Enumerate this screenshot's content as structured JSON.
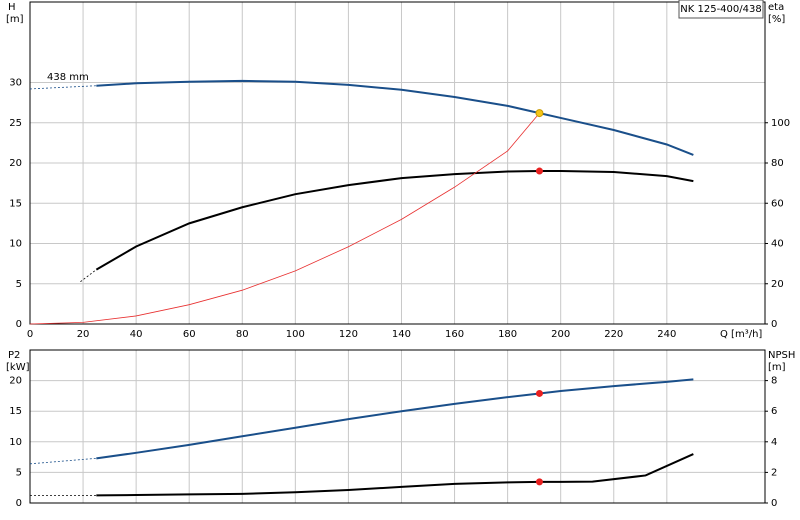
{
  "chart_data": [
    {
      "type": "line",
      "title": "NK 125-400/438",
      "y_label": "H",
      "y_unit": "[m]",
      "y2_label": "eta",
      "y2_unit": "[%]",
      "x_label": "Q [m³/h]",
      "annotation": "438 mm",
      "xlim": [
        0,
        277
      ],
      "xticks": [
        0,
        20,
        40,
        60,
        80,
        100,
        120,
        140,
        160,
        180,
        200,
        220,
        240
      ],
      "ylim": [
        0,
        40
      ],
      "yticks": [
        0,
        5,
        10,
        15,
        20,
        25,
        30
      ],
      "y2lim": [
        0,
        160
      ],
      "y2ticks": [
        0,
        20,
        40,
        60,
        80,
        100
      ],
      "grid": true,
      "series": [
        {
          "color": "#1a4f8a",
          "style": "dashed",
          "x": [
            0,
            25
          ],
          "values": [
            29.2,
            29.6
          ]
        },
        {
          "color": "#1a4f8a",
          "x": [
            25,
            40,
            60,
            80,
            100,
            120,
            140,
            160,
            180,
            192,
            200,
            220,
            240,
            250
          ],
          "values": [
            29.6,
            29.9,
            30.1,
            30.2,
            30.1,
            29.7,
            29.1,
            28.2,
            27.1,
            26.2,
            25.6,
            24.1,
            22.3,
            21.0
          ]
        },
        {
          "color": "#000000",
          "style": "dashed",
          "axis": "y2",
          "x": [
            19,
            25
          ],
          "values": [
            21,
            27
          ]
        },
        {
          "color": "#000000",
          "axis": "y2",
          "x": [
            25,
            40,
            60,
            80,
            100,
            120,
            140,
            160,
            180,
            192,
            200,
            220,
            240,
            250
          ],
          "values": [
            27,
            38.5,
            50,
            58,
            64.5,
            69,
            72.5,
            74.5,
            75.8,
            76,
            76,
            75.5,
            73.5,
            71
          ]
        },
        {
          "color": "#e83030",
          "thin": true,
          "x": [
            0,
            20,
            40,
            60,
            80,
            100,
            120,
            140,
            160,
            180,
            192
          ],
          "values": [
            0,
            0.2,
            1,
            2.4,
            4.2,
            6.6,
            9.6,
            13,
            17,
            21.5,
            26.2
          ]
        }
      ],
      "points": [
        {
          "x": 192,
          "y": 26.2,
          "color": "#f5c518"
        },
        {
          "x": 192,
          "y": 76,
          "axis": "y2",
          "color": "#e82020"
        }
      ]
    },
    {
      "type": "line",
      "y_label": "P2",
      "y_unit": "[kW]",
      "y2_label": "NPSH",
      "y2_unit": "[m]",
      "ylim": [
        0,
        25
      ],
      "yticks": [
        0,
        5,
        10,
        15,
        20
      ],
      "y2lim": [
        0,
        10
      ],
      "y2ticks": [
        0,
        2,
        4,
        6,
        8
      ],
      "grid": true,
      "series": [
        {
          "color": "#1a4f8a",
          "style": "dashed",
          "x": [
            0,
            25
          ],
          "values": [
            6.4,
            7.3
          ]
        },
        {
          "color": "#1a4f8a",
          "x": [
            25,
            40,
            60,
            80,
            100,
            120,
            140,
            160,
            180,
            192,
            200,
            220,
            240,
            250
          ],
          "values": [
            7.3,
            8.2,
            9.5,
            10.9,
            12.3,
            13.7,
            15.0,
            16.2,
            17.3,
            17.9,
            18.3,
            19.1,
            19.8,
            20.2
          ]
        },
        {
          "color": "#000000",
          "style": "dashed",
          "axis": "y2",
          "x": [
            0,
            25
          ],
          "values": [
            0.5,
            0.5
          ]
        },
        {
          "color": "#000000",
          "axis": "y2",
          "x": [
            25,
            40,
            60,
            80,
            100,
            120,
            140,
            160,
            180,
            192,
            200,
            212,
            232,
            250
          ],
          "values": [
            0.5,
            0.52,
            0.56,
            0.6,
            0.7,
            0.85,
            1.05,
            1.25,
            1.35,
            1.38,
            1.38,
            1.4,
            1.8,
            3.2
          ]
        }
      ],
      "points": [
        {
          "x": 192,
          "y": 17.9,
          "color": "#e82020"
        },
        {
          "x": 192,
          "y": 1.38,
          "axis": "y2",
          "color": "#e82020"
        }
      ]
    }
  ]
}
